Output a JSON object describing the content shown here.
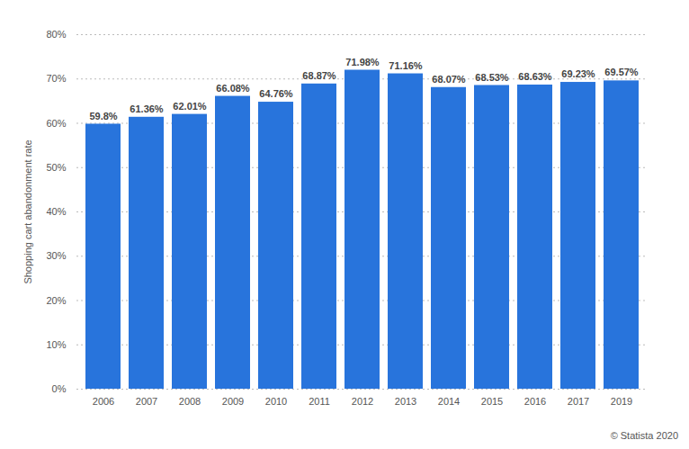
{
  "chart_data": {
    "type": "bar",
    "y_label": "Shopping cart abandonment rate",
    "caption": "© Statista 2020",
    "categories": [
      "2006",
      "2007",
      "2008",
      "2009",
      "2010",
      "2011",
      "2012",
      "2013",
      "2014",
      "2015",
      "2016",
      "2017",
      "2019"
    ],
    "values": [
      59.8,
      61.36,
      62.01,
      66.08,
      64.76,
      68.87,
      71.98,
      71.16,
      68.07,
      68.53,
      68.63,
      69.23,
      69.57
    ],
    "value_labels": [
      "59.8%",
      "61.36%",
      "62.01%",
      "66.08%",
      "64.76%",
      "68.87%",
      "71.98%",
      "71.16%",
      "68.07%",
      "68.53%",
      "68.63%",
      "69.23%",
      "69.57%"
    ],
    "color": "#2874dc",
    "ylim": [
      0,
      80
    ],
    "yticks": [
      {
        "value": 0,
        "label": "0%"
      },
      {
        "value": 10,
        "label": "10%"
      },
      {
        "value": 20,
        "label": "20%"
      },
      {
        "value": 30,
        "label": "30%"
      },
      {
        "value": 40,
        "label": "40%"
      },
      {
        "value": 50,
        "label": "50%"
      },
      {
        "value": 60,
        "label": "60%"
      },
      {
        "value": 70,
        "label": "70%"
      },
      {
        "value": 80,
        "label": "80%"
      }
    ],
    "grid": true,
    "data_labels": true
  }
}
